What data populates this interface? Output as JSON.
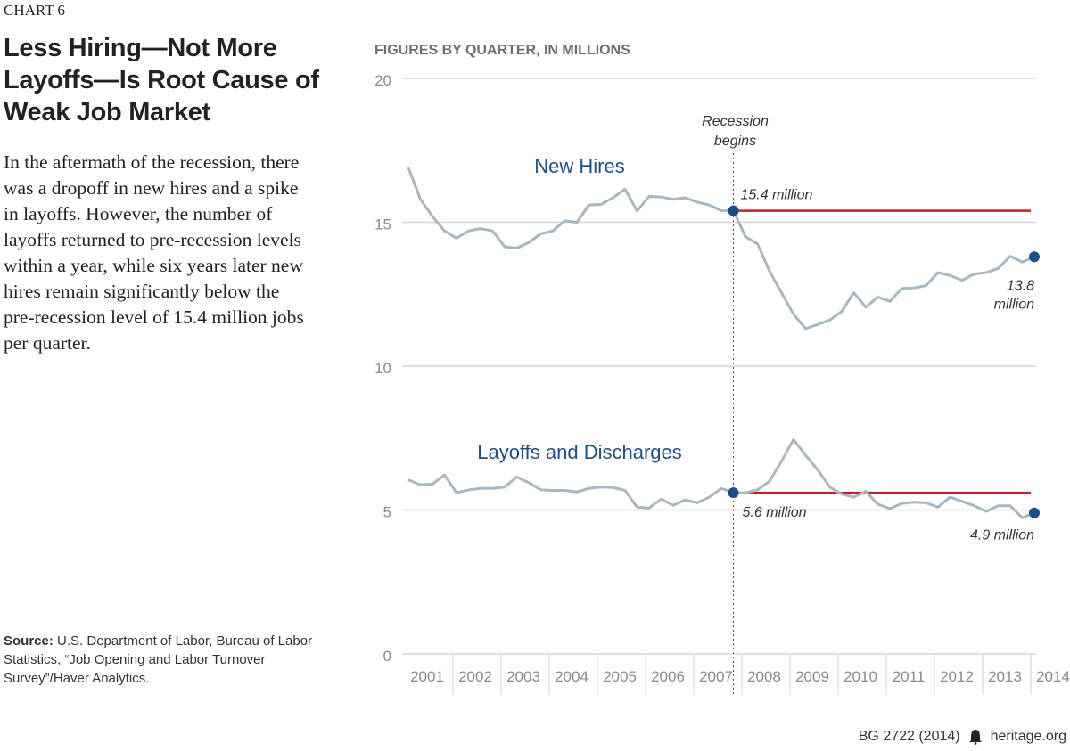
{
  "chart_tag": "CHART 6",
  "headline": "Less Hiring—Not More Layoffs—Is Root Cause of Weak Job Market",
  "description": "In the aftermath of the recession, there was a dropoff in new hires and a spike in layoffs. However, the number of layoffs returned to pre-recession levels within a year, while six years later new hires remain significantly below the pre-recession level of 15.4 million jobs per quarter.",
  "source": {
    "label": "Source:",
    "text": "U.S. Department of Labor, Bureau of Labor Statistics, “Job Opening and Labor Turnover Survey”/Haver Analytics."
  },
  "footer": {
    "id": "BG 2722 (2014)",
    "site": "heritage.org"
  },
  "colors": {
    "series_line": "#a8b7c2",
    "marker": "#1b4f8a",
    "reference_line": "#b8242c",
    "gridline": "#d6d6d6",
    "axis_text": "#8a8a8a",
    "label_blue": "#1e4f86"
  },
  "chart_data": {
    "type": "line",
    "units_label": "FIGURES BY QUARTER, IN MILLIONS",
    "x_label": "",
    "y_label": "",
    "ylim": [
      0,
      20
    ],
    "y_ticks": [
      0,
      5,
      10,
      15,
      20
    ],
    "x_tick_labels": [
      "2001",
      "2002",
      "2003",
      "2004",
      "2005",
      "2006",
      "2007",
      "2008",
      "2009",
      "2010",
      "2011",
      "2012",
      "2013",
      "2014"
    ],
    "quarters_per_year": 4,
    "first_year": 2001,
    "grid": "horizontal",
    "series": [
      {
        "name": "New Hires",
        "values": [
          16.9,
          15.8,
          15.2,
          14.7,
          14.45,
          14.7,
          14.78,
          14.7,
          14.15,
          14.1,
          14.3,
          14.6,
          14.7,
          15.05,
          15.0,
          15.6,
          15.62,
          15.85,
          16.15,
          15.4,
          15.9,
          15.88,
          15.8,
          15.85,
          15.7,
          15.6,
          15.4,
          15.4,
          14.5,
          14.25,
          13.3,
          12.55,
          11.8,
          11.3,
          11.45,
          11.6,
          11.9,
          12.55,
          12.05,
          12.4,
          12.25,
          12.7,
          12.72,
          12.8,
          13.25,
          13.15,
          12.98,
          13.2,
          13.25,
          13.4,
          13.82,
          13.62,
          13.8
        ],
        "callouts": [
          {
            "label": "15.4 million",
            "index": 27,
            "value": 15.4
          },
          {
            "label": "13.8 million",
            "index": 52,
            "value": 13.8
          }
        ],
        "reference_value": 15.4
      },
      {
        "name": "Layoffs and Discharges",
        "values": [
          6.05,
          5.88,
          5.9,
          6.22,
          5.6,
          5.7,
          5.75,
          5.75,
          5.8,
          6.15,
          5.95,
          5.7,
          5.68,
          5.68,
          5.63,
          5.75,
          5.8,
          5.78,
          5.68,
          5.1,
          5.07,
          5.38,
          5.16,
          5.35,
          5.25,
          5.45,
          5.75,
          5.6,
          5.6,
          5.7,
          6.0,
          6.7,
          7.45,
          6.9,
          6.4,
          5.8,
          5.55,
          5.45,
          5.65,
          5.2,
          5.05,
          5.23,
          5.27,
          5.25,
          5.1,
          5.45,
          5.3,
          5.15,
          4.95,
          5.15,
          5.15,
          4.73,
          4.9
        ],
        "callouts": [
          {
            "label": "5.6 million",
            "index": 27,
            "value": 5.6
          },
          {
            "label": "4.9 million",
            "index": 52,
            "value": 4.9
          }
        ],
        "reference_value": 5.6
      }
    ],
    "annotations": [
      {
        "label": "Recession begins",
        "index": 27
      }
    ]
  }
}
